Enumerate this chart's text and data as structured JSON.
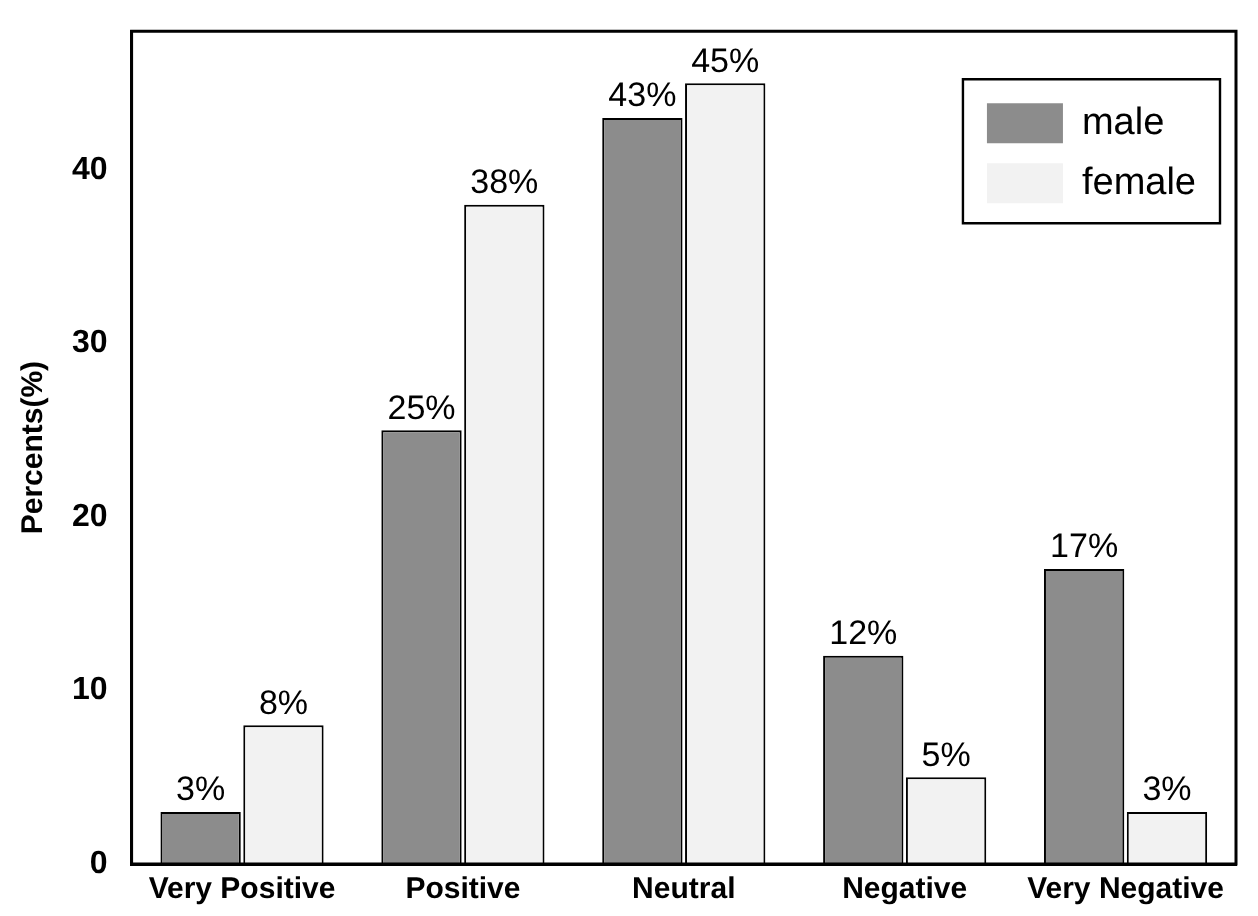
{
  "chart_data": {
    "type": "bar",
    "ylabel": "Percents(%)",
    "categories": [
      "Very Positive",
      "Positive",
      "Neutral",
      "Negative",
      "Very Negative"
    ],
    "series": [
      {
        "name": "male",
        "color": "#8c8c8c",
        "values": [
          3,
          25,
          43,
          12,
          17
        ],
        "value_labels": [
          "3%",
          "25%",
          "43%",
          "12%",
          "17%"
        ]
      },
      {
        "name": "female",
        "color": "#f2f2f2",
        "values": [
          8,
          38,
          45,
          5,
          3
        ],
        "value_labels": [
          "8%",
          "38%",
          "45%",
          "5%",
          "3%"
        ]
      }
    ],
    "ylim": [
      0,
      48
    ],
    "yticks": [
      0,
      10,
      20,
      30,
      40
    ],
    "grid": false,
    "legend": "top right"
  }
}
